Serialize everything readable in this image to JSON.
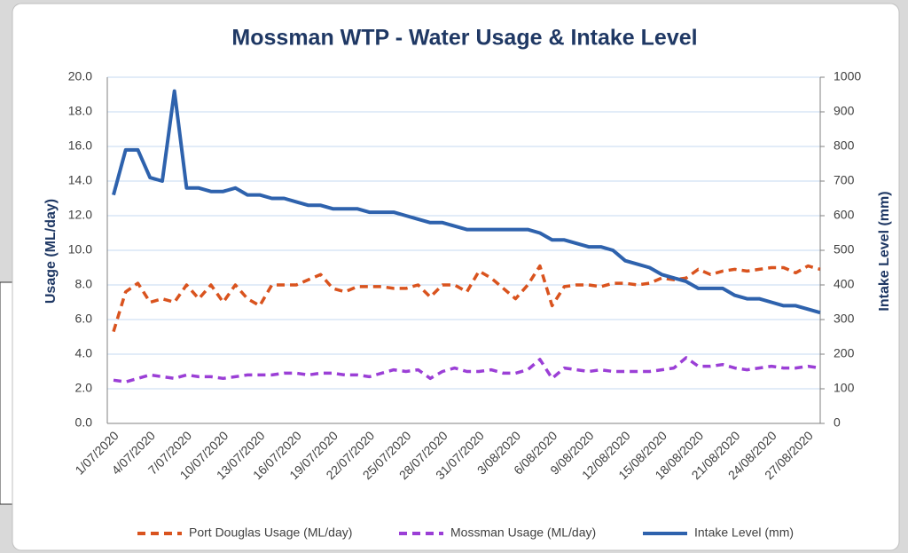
{
  "chart_data": {
    "type": "line",
    "title": "Mossman WTP - Water Usage & Intake Level",
    "y_label": "Usage (ML/day)",
    "y2_label": "Intake Level (mm)",
    "categories": [
      "1/07/2020",
      null,
      null,
      "4/07/2020",
      null,
      null,
      "7/07/2020",
      null,
      null,
      "10/07/2020",
      null,
      null,
      "13/07/2020",
      null,
      null,
      "16/07/2020",
      null,
      null,
      "19/07/2020",
      null,
      null,
      "22/07/2020",
      null,
      null,
      "25/07/2020",
      null,
      null,
      "28/07/2020",
      null,
      null,
      "31/07/2020",
      null,
      null,
      "3/08/2020",
      null,
      null,
      "6/08/2020",
      null,
      null,
      "9/08/2020",
      null,
      null,
      "12/08/2020",
      null,
      null,
      "15/08/2020",
      null,
      null,
      "18/08/2020",
      null,
      null,
      "21/08/2020",
      null,
      null,
      "24/08/2020",
      null,
      null,
      "27/08/2020",
      null
    ],
    "series": [
      {
        "name": "Port Douglas Usage (ML/day)",
        "color": "#d9531e",
        "dashed": true,
        "values": [
          5.3,
          7.6,
          8.1,
          7.0,
          7.2,
          7.0,
          8.0,
          7.2,
          8.0,
          7.0,
          8.0,
          7.2,
          6.8,
          8.0,
          8.0,
          8.0,
          8.3,
          8.6,
          7.8,
          7.6,
          7.9,
          7.9,
          7.9,
          7.8,
          7.8,
          8.0,
          7.3,
          8.0,
          8.0,
          7.6,
          8.8,
          8.4,
          7.8,
          7.2,
          8.0,
          9.1,
          6.8,
          7.9,
          8.0,
          8.0,
          7.9,
          8.1,
          8.1,
          8.0,
          8.1,
          8.4,
          8.3,
          8.4,
          8.9,
          8.6,
          8.8,
          8.9,
          8.8,
          8.9,
          9.0,
          9.0,
          8.7,
          9.1,
          8.9
        ]
      },
      {
        "name": "Mossman Usage (ML/day)",
        "color": "#9b3fd6",
        "dashed": true,
        "values": [
          2.5,
          2.4,
          2.6,
          2.8,
          2.7,
          2.6,
          2.8,
          2.7,
          2.7,
          2.6,
          2.7,
          2.8,
          2.8,
          2.8,
          2.9,
          2.9,
          2.8,
          2.9,
          2.9,
          2.8,
          2.8,
          2.7,
          2.9,
          3.1,
          3.0,
          3.1,
          2.6,
          3.0,
          3.2,
          3.0,
          3.0,
          3.1,
          2.9,
          2.9,
          3.1,
          3.7,
          2.6,
          3.2,
          3.1,
          3.0,
          3.1,
          3.0,
          3.0,
          3.0,
          3.0,
          3.1,
          3.2,
          3.8,
          3.3,
          3.3,
          3.4,
          3.2,
          3.1,
          3.2,
          3.3,
          3.2,
          3.2,
          3.3,
          3.2
        ]
      },
      {
        "name": "Intake Level (mm)",
        "color": "#2e62ad",
        "dashed": false,
        "axis": "y2",
        "values": [
          660,
          790,
          790,
          710,
          700,
          960,
          680,
          680,
          670,
          670,
          680,
          660,
          660,
          650,
          650,
          640,
          630,
          630,
          620,
          620,
          620,
          610,
          610,
          610,
          600,
          590,
          580,
          580,
          570,
          560,
          560,
          560,
          560,
          560,
          560,
          550,
          530,
          530,
          520,
          510,
          510,
          500,
          470,
          460,
          450,
          430,
          420,
          410,
          390,
          390,
          390,
          370,
          360,
          360,
          350,
          340,
          340,
          330,
          320
        ]
      }
    ],
    "ylim": [
      0,
      20
    ],
    "yticks": [
      {
        "value": 0,
        "label": "0.0"
      },
      {
        "value": 2,
        "label": "2.0"
      },
      {
        "value": 4,
        "label": "4.0"
      },
      {
        "value": 6,
        "label": "6.0"
      },
      {
        "value": 8,
        "label": "8.0"
      },
      {
        "value": 10,
        "label": "10.0"
      },
      {
        "value": 12,
        "label": "12.0"
      },
      {
        "value": 14,
        "label": "14.0"
      },
      {
        "value": 16,
        "label": "16.0"
      },
      {
        "value": 18,
        "label": "18.0"
      },
      {
        "value": 20,
        "label": "20.0"
      }
    ],
    "y2lim": [
      0,
      1000
    ],
    "y2ticks": [
      0,
      100,
      200,
      300,
      400,
      500,
      600,
      700,
      800,
      900,
      1000
    ],
    "grid": true,
    "legend": "bottom"
  }
}
